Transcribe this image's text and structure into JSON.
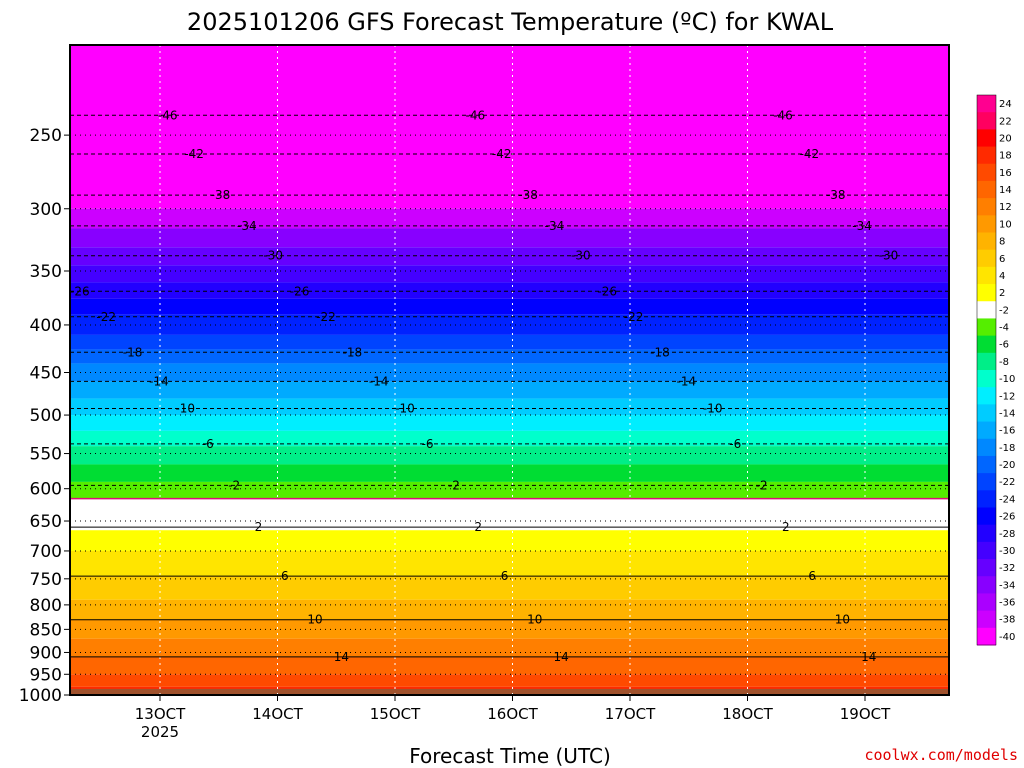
{
  "chart_data": {
    "type": "heatmap",
    "title": "2025101206 GFS Forecast Temperature (ºC) for KWAL",
    "xlabel": "Forecast Time (UTC)",
    "ylabel": "",
    "credit": "coolwx.com/models",
    "y_scale": "log-pressure",
    "ylim": [
      1000,
      200
    ],
    "y_ticks": [
      250,
      300,
      350,
      400,
      450,
      500,
      550,
      600,
      650,
      700,
      750,
      800,
      850,
      900,
      950,
      1000
    ],
    "x_ticks": [
      {
        "label": "13OCT",
        "sublabel": "2025"
      },
      {
        "label": "14OCT",
        "sublabel": ""
      },
      {
        "label": "15OCT",
        "sublabel": ""
      },
      {
        "label": "16OCT",
        "sublabel": ""
      },
      {
        "label": "17OCT",
        "sublabel": ""
      },
      {
        "label": "18OCT",
        "sublabel": ""
      },
      {
        "label": "19OCT",
        "sublabel": ""
      }
    ],
    "grid": "dotted",
    "legend": "right colorbar",
    "colorbar_labels": [
      "24",
      "22",
      "20",
      "18",
      "16",
      "14",
      "12",
      "10",
      "8",
      "6",
      "4",
      "2",
      "-2",
      "-4",
      "-6",
      "-8",
      "-10",
      "-12",
      "-14",
      "-16",
      "-18",
      "-20",
      "-22",
      "-24",
      "-26",
      "-28",
      "-30",
      "-32",
      "-34",
      "-36",
      "-38",
      "-40"
    ],
    "colorbar_colors": [
      "#ff0090",
      "#ff0060",
      "#ff0000",
      "#ff2a00",
      "#ff4a00",
      "#ff6600",
      "#ff7f00",
      "#ff9900",
      "#ffb300",
      "#ffcc00",
      "#ffe500",
      "#ffff00",
      "#ffffff",
      "#55ee00",
      "#00dd33",
      "#00ee88",
      "#00ffcc",
      "#00eeff",
      "#00ccff",
      "#00aaff",
      "#0088ff",
      "#0066ff",
      "#0044ff",
      "#0022ff",
      "#0000ff",
      "#2200ff",
      "#4400ff",
      "#6600ff",
      "#8800ff",
      "#aa00ff",
      "#cc00ff",
      "#ff00ff"
    ],
    "profile": [
      {
        "p": 200,
        "t": -50,
        "color": "#ff00ff"
      },
      {
        "p": 290,
        "t": -38,
        "color": "#ff00ff"
      },
      {
        "p": 300,
        "t": -36,
        "color": "#cc00ff"
      },
      {
        "p": 315,
        "t": -32,
        "color": "#8800ff"
      },
      {
        "p": 330,
        "t": -30,
        "color": "#6600ff"
      },
      {
        "p": 345,
        "t": -28,
        "color": "#4400ff"
      },
      {
        "p": 360,
        "t": -26,
        "color": "#2200ff"
      },
      {
        "p": 375,
        "t": -24,
        "color": "#0000ff"
      },
      {
        "p": 390,
        "t": -22,
        "color": "#0022ff"
      },
      {
        "p": 410,
        "t": -20,
        "color": "#0044ff"
      },
      {
        "p": 425,
        "t": -18,
        "color": "#0066ff"
      },
      {
        "p": 440,
        "t": -16,
        "color": "#0088ff"
      },
      {
        "p": 460,
        "t": -14,
        "color": "#00aaff"
      },
      {
        "p": 480,
        "t": -12,
        "color": "#00ccff"
      },
      {
        "p": 500,
        "t": -10,
        "color": "#00eeff"
      },
      {
        "p": 520,
        "t": -8,
        "color": "#00ffcc"
      },
      {
        "p": 540,
        "t": -6,
        "color": "#00ee88"
      },
      {
        "p": 565,
        "t": -4,
        "color": "#00dd33"
      },
      {
        "p": 590,
        "t": -2,
        "color": "#55ee00"
      },
      {
        "p": 615,
        "t": 0,
        "color": "#ffffff"
      },
      {
        "p": 665,
        "t": 2,
        "color": "#ffff00"
      },
      {
        "p": 700,
        "t": 4,
        "color": "#ffe500"
      },
      {
        "p": 745,
        "t": 6,
        "color": "#ffcc00"
      },
      {
        "p": 790,
        "t": 8,
        "color": "#ffb300"
      },
      {
        "p": 830,
        "t": 10,
        "color": "#ff9900"
      },
      {
        "p": 870,
        "t": 12,
        "color": "#ff7f00"
      },
      {
        "p": 910,
        "t": 14,
        "color": "#ff6600"
      },
      {
        "p": 950,
        "t": 16,
        "color": "#ff4a00"
      },
      {
        "p": 980,
        "t": 18,
        "color": "#ff2a00"
      },
      {
        "p": 1000,
        "t": 20,
        "color": "#ff0000"
      }
    ],
    "contours": [
      {
        "p": 238,
        "label": "-46"
      },
      {
        "p": 262,
        "label": "-42"
      },
      {
        "p": 290,
        "label": "-38"
      },
      {
        "p": 313,
        "label": "-34"
      },
      {
        "p": 337,
        "label": "-30"
      },
      {
        "p": 368,
        "label": "-26"
      },
      {
        "p": 392,
        "label": "-22"
      },
      {
        "p": 428,
        "label": "-18"
      },
      {
        "p": 460,
        "label": "-14"
      },
      {
        "p": 492,
        "label": "-10"
      },
      {
        "p": 537,
        "label": "-6"
      },
      {
        "p": 595,
        "label": "-2"
      },
      {
        "p": 660,
        "label": "2"
      },
      {
        "p": 745,
        "label": "6"
      },
      {
        "p": 830,
        "label": "10"
      },
      {
        "p": 910,
        "label": "14"
      }
    ],
    "ground_color": "#a0522d"
  }
}
